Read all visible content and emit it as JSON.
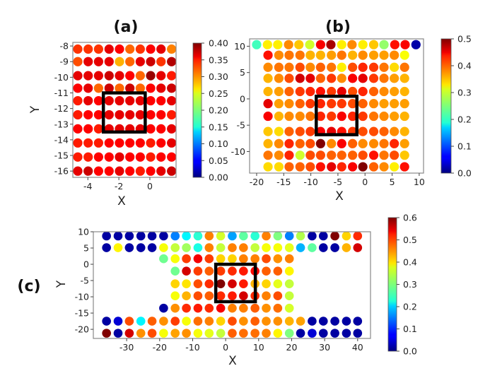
{
  "chart_data": [
    {
      "panel": "(a)",
      "type": "scatter",
      "title": "(a)",
      "xlabel": "X",
      "ylabel": "Y",
      "xlim": [
        -4.97,
        1.69
      ],
      "ylim": [
        -16.4,
        -7.77
      ],
      "xticks": [
        "-4",
        "-2",
        "0"
      ],
      "xtick_values": [
        -4,
        -2,
        0
      ],
      "yticks": [
        "-8",
        "-9",
        "-10",
        "-11",
        "-12",
        "-13",
        "-14",
        "-15",
        "-16"
      ],
      "ytick_values": [
        -8,
        -9,
        -10,
        -11,
        -12,
        -13,
        -14,
        -15,
        -16
      ],
      "colormap": "jet",
      "color_range": [
        0,
        0.4
      ],
      "colorbar_ticks": [
        "0.00",
        "0.05",
        "0.10",
        "0.15",
        "0.20",
        "0.25",
        "0.30",
        "0.35",
        "0.40"
      ],
      "colorbar_tick_values": [
        0,
        0.05,
        0.1,
        0.15,
        0.2,
        0.25,
        0.3,
        0.35,
        0.4
      ],
      "highlight_box": {
        "x": [
          -3.0,
          -0.3
        ],
        "y": [
          -13.5,
          -11.0
        ]
      },
      "columns": [
        -4.65,
        -3.98,
        -3.31,
        -2.63,
        -1.96,
        -1.29,
        -0.62,
        0.05,
        0.72,
        1.4
      ],
      "rows": [
        {
          "y": -8.2,
          "col_offset": 0,
          "values": [
            0.33,
            0.33,
            0.33,
            0.36,
            0.35,
            0.31,
            0.33,
            0.35,
            0.36,
            0.3
          ]
        },
        {
          "y": -9.0,
          "col_offset": 0,
          "values": [
            0.32,
            0.36,
            0.36,
            0.36,
            0.28,
            0.31,
            0.36,
            0.37,
            0.33,
            0.38
          ]
        },
        {
          "y": -9.9,
          "col_offset": 0,
          "values": [
            0.36,
            0.36,
            0.36,
            0.37,
            0.36,
            0.35,
            0.31,
            0.39,
            0.36,
            0.34
          ]
        },
        {
          "y": -10.7,
          "col_offset": 0,
          "values": [
            0.35,
            0.36,
            0.31,
            0.37,
            0.31,
            0.37,
            0.31,
            0.35,
            0.36,
            0.37
          ]
        },
        {
          "y": -11.5,
          "col_offset": 0,
          "values": [
            0.34,
            0.36,
            0.35,
            0.36,
            0.36,
            0.36,
            0.36,
            0.35,
            0.35,
            0.36
          ]
        },
        {
          "y": -12.4,
          "col_offset": 0,
          "values": [
            0.34,
            0.35,
            0.35,
            0.36,
            0.36,
            0.36,
            0.36,
            0.35,
            0.35,
            0.34
          ]
        },
        {
          "y": -13.3,
          "col_offset": 0,
          "values": [
            0.35,
            0.35,
            0.34,
            0.36,
            0.36,
            0.36,
            0.36,
            0.35,
            0.35,
            0.36
          ]
        },
        {
          "y": -14.2,
          "col_offset": 0,
          "values": [
            0.34,
            0.34,
            0.34,
            0.35,
            0.35,
            0.35,
            0.35,
            0.34,
            0.35,
            0.36
          ]
        },
        {
          "y": -15.1,
          "col_offset": 0,
          "values": [
            0.34,
            0.34,
            0.35,
            0.35,
            0.36,
            0.35,
            0.35,
            0.34,
            0.35,
            0.35
          ]
        },
        {
          "y": -16.0,
          "col_offset": 0,
          "values": [
            0.36,
            0.37,
            0.35,
            0.35,
            0.36,
            0.35,
            0.34,
            0.35,
            0.36,
            0.37
          ]
        }
      ]
    },
    {
      "panel": "(b)",
      "type": "scatter",
      "title": "(b)",
      "xlabel": "X",
      "ylabel": "",
      "xlim": [
        -21.3,
        10.8
      ],
      "ylim": [
        -14.1,
        11.4
      ],
      "xticks": [
        "-20",
        "-15",
        "-10",
        "-5",
        "0",
        "5",
        "10"
      ],
      "xtick_values": [
        -20,
        -15,
        -10,
        -5,
        0,
        5,
        10
      ],
      "yticks": [
        "10",
        "5",
        "0",
        "-5",
        "-10"
      ],
      "ytick_values": [
        10,
        5,
        0,
        -5,
        -10
      ],
      "colormap": "jet",
      "color_range": [
        0,
        0.5
      ],
      "colorbar_ticks": [
        "0.0",
        "0.1",
        "0.2",
        "0.3",
        "0.4",
        "0.5"
      ],
      "colorbar_tick_values": [
        0,
        0.1,
        0.2,
        0.3,
        0.4,
        0.5
      ],
      "highlight_box": {
        "x": [
          -9.0,
          -1.5
        ],
        "y": [
          -6.8,
          0.5
        ]
      },
      "columns": [
        -17.9,
        -15.9,
        -14.0,
        -12.0,
        -10.1,
        -8.2,
        -6.2,
        -4.3,
        -2.3,
        -0.4,
        1.6,
        3.5,
        5.4,
        7.3
      ],
      "rows": [
        {
          "y": 10.3,
          "x": [
            -20.0,
            -18.0,
            -16.1,
            -14.1,
            -12.2,
            -10.2,
            -8.2,
            -6.3,
            -4.3,
            -2.4,
            -0.4,
            1.6,
            3.5,
            5.5,
            7.4,
            9.4
          ],
          "values": [
            0.22,
            0.32,
            0.32,
            0.37,
            0.34,
            0.29,
            0.44,
            0.48,
            0.32,
            0.37,
            0.32,
            0.34,
            0.26,
            0.43,
            0.44,
            0.02
          ]
        },
        {
          "y": 8.3,
          "col_offset": 0,
          "values": [
            0.43,
            0.37,
            0.38,
            0.38,
            0.35,
            0.35,
            0.36,
            0.38,
            0.35,
            0.37,
            0.36,
            0.36,
            0.37,
            0.31
          ]
        },
        {
          "y": 6.0,
          "col_offset": 0,
          "values": [
            0.37,
            0.38,
            0.38,
            0.4,
            0.37,
            0.39,
            0.38,
            0.32,
            0.4,
            0.42,
            0.41,
            0.38,
            0.33,
            0.38
          ]
        },
        {
          "y": 3.9,
          "col_offset": 0,
          "values": [
            0.35,
            0.37,
            0.4,
            0.46,
            0.45,
            0.39,
            0.41,
            0.37,
            0.44,
            0.45,
            0.41,
            0.38,
            0.36,
            0.35
          ]
        },
        {
          "y": 1.4,
          "col_offset": 0,
          "values": [
            0.35,
            0.36,
            0.39,
            0.41,
            0.42,
            0.43,
            0.41,
            0.45,
            0.4,
            0.42,
            0.39,
            0.37,
            0.36,
            0.35
          ]
        },
        {
          "y": -0.9,
          "col_offset": 0,
          "values": [
            0.45,
            0.36,
            0.37,
            0.39,
            0.41,
            0.42,
            0.41,
            0.41,
            0.4,
            0.39,
            0.37,
            0.36,
            0.36,
            0.36
          ]
        },
        {
          "y": -3.3,
          "col_offset": 0,
          "values": [
            0.44,
            0.35,
            0.37,
            0.37,
            0.38,
            0.42,
            0.41,
            0.44,
            0.42,
            0.41,
            0.38,
            0.37,
            0.36,
            0.35
          ]
        },
        {
          "y": -6.2,
          "col_offset": 0,
          "values": [
            0.34,
            0.33,
            0.39,
            0.4,
            0.41,
            0.44,
            0.45,
            0.43,
            0.41,
            0.4,
            0.4,
            0.39,
            0.37,
            0.35
          ]
        },
        {
          "y": -8.5,
          "col_offset": 0,
          "values": [
            0.35,
            0.37,
            0.42,
            0.39,
            0.4,
            0.5,
            0.37,
            0.44,
            0.39,
            0.37,
            0.37,
            0.38,
            0.42,
            0.36
          ]
        },
        {
          "y": -10.7,
          "col_offset": 0,
          "values": [
            0.38,
            0.37,
            0.42,
            0.29,
            0.4,
            0.4,
            0.39,
            0.39,
            0.39,
            0.4,
            0.43,
            0.38,
            0.4,
            0.34
          ]
        },
        {
          "y": -12.9,
          "col_offset": 0,
          "values": [
            0.33,
            0.33,
            0.39,
            0.39,
            0.4,
            0.43,
            0.45,
            0.42,
            0.44,
            0.5,
            0.39,
            0.37,
            0.32,
            0.43
          ]
        }
      ]
    },
    {
      "panel": "(c)",
      "type": "scatter",
      "title": "(c)",
      "xlabel": "X",
      "ylabel": "Y",
      "xlim": [
        -40.1,
        43.9
      ],
      "ylim": [
        -22.8,
        10.0
      ],
      "xticks": [
        "-30",
        "-20",
        "-10",
        "0",
        "10",
        "20",
        "30",
        "40"
      ],
      "xtick_values": [
        -30,
        -20,
        -10,
        0,
        10,
        20,
        30,
        40
      ],
      "yticks": [
        "10",
        "5",
        "0",
        "-5",
        "-10",
        "-15",
        "-20"
      ],
      "ytick_values": [
        10,
        5,
        0,
        -5,
        -10,
        -15,
        -20
      ],
      "colormap": "jet",
      "color_range": [
        0,
        0.6
      ],
      "colorbar_ticks": [
        "0.0",
        "0.1",
        "0.2",
        "0.3",
        "0.4",
        "0.5",
        "0.6"
      ],
      "colorbar_tick_values": [
        0,
        0.1,
        0.2,
        0.3,
        0.4,
        0.5,
        0.6
      ],
      "highlight_box": {
        "x": [
          -3.0,
          9.0
        ],
        "y": [
          -11.5,
          0.0
        ]
      },
      "columns": [
        -36.1,
        -32.6,
        -29.2,
        -25.7,
        -22.3,
        -18.8,
        -15.3,
        -11.9,
        -8.4,
        -5.0,
        -1.5,
        2.0,
        5.4,
        8.9,
        12.3,
        15.8,
        19.3,
        22.7,
        26.2,
        29.6,
        33.1,
        36.6,
        40.0
      ],
      "rows": [
        {
          "y": 8.7,
          "col_offset": 0,
          "values": [
            0.02,
            0.02,
            0.02,
            0.02,
            0.02,
            0.02,
            0.15,
            0.22,
            0.25,
            0.45,
            0.35,
            0.17,
            0.28,
            0.25,
            0.45,
            0.3,
            0.15,
            0.33,
            0.02,
            0.02,
            0.6,
            0.4,
            0.5
          ]
        },
        {
          "y": 5.1,
          "col_offset": 0,
          "values": [
            0.02,
            0.38,
            0.02,
            0.02,
            0.02,
            0.37,
            0.34,
            0.32,
            0.24,
            0.45,
            0.34,
            0.45,
            0.45,
            0.34,
            0.37,
            0.37,
            0.36,
            0.18,
            0.28,
            0.02,
            0.02,
            0.42,
            0.55
          ]
        },
        {
          "y": 1.7,
          "col_offset": 5,
          "values": [
            0.29,
            0.37,
            0.49,
            0.53,
            0.49,
            0.4,
            0.4,
            0.45,
            0.45,
            0.48,
            0.44,
            0.45
          ]
        },
        {
          "y": -2.1,
          "col_offset": 6,
          "values": [
            0.29,
            0.55,
            0.49,
            0.47,
            0.49,
            0.5,
            0.51,
            0.52,
            0.47,
            0.47,
            0.38
          ]
        },
        {
          "y": -6.0,
          "col_offset": 6,
          "values": [
            0.4,
            0.39,
            0.48,
            0.5,
            0.6,
            0.55,
            0.51,
            0.42,
            0.4,
            0.36,
            0.34
          ]
        },
        {
          "y": -9.7,
          "col_offset": 6,
          "values": [
            0.37,
            0.42,
            0.48,
            0.47,
            0.5,
            0.51,
            0.55,
            0.5,
            0.45,
            0.48,
            0.34
          ]
        },
        {
          "y": -13.5,
          "col_offset": 5,
          "values": [
            0.02,
            0.44,
            0.5,
            0.51,
            0.5,
            0.53,
            0.45,
            0.45,
            0.47,
            0.44,
            0.46,
            0.35
          ]
        },
        {
          "y": -17.5,
          "col_offset": 0,
          "values": [
            0.02,
            0.05,
            0.48,
            0.22,
            0.47,
            0.44,
            0.49,
            0.37,
            0.46,
            0.45,
            0.4,
            0.48,
            0.44,
            0.47,
            0.44,
            0.44,
            0.42,
            0.43,
            0.02,
            0.02,
            0.02,
            0.02,
            0.02
          ]
        },
        {
          "y": -21.2,
          "col_offset": 0,
          "values": [
            0.6,
            0.02,
            0.55,
            0.44,
            0.48,
            0.37,
            0.43,
            0.44,
            0.37,
            0.36,
            0.34,
            0.47,
            0.46,
            0.46,
            0.45,
            0.38,
            0.3,
            0.02,
            0.05,
            0.02,
            0.02,
            0.02,
            0.02
          ]
        }
      ]
    }
  ]
}
